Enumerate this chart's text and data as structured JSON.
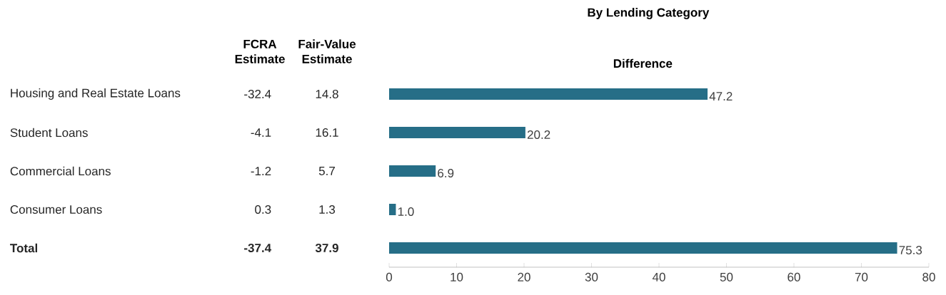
{
  "chart_data": [
    {
      "type": "other",
      "categories": [
        "Housing and Real Estate Loans",
        "Student Loans",
        "Commercial Loans",
        "Consumer Loans",
        "Total"
      ],
      "series": [
        {
          "name": "FCRA Estimate",
          "values": [
            -32.4,
            -4.1,
            -1.2,
            0.3,
            -37.4
          ]
        },
        {
          "name": "Fair-Value Estimate",
          "values": [
            14.8,
            16.1,
            5.7,
            1.3,
            37.9
          ]
        }
      ],
      "data_labels": true
    },
    {
      "type": "bar",
      "orientation": "horizontal",
      "title": "By Lending Category",
      "categories": [
        null,
        null,
        null,
        null,
        null
      ],
      "series": [
        {
          "name": "Difference",
          "color": "#266e87",
          "values": [
            47.2,
            20.2,
            6.9,
            1.0,
            75.3
          ],
          "value_labels": [
            "47.2",
            "20.2",
            "6.9",
            "1.0",
            "75.3"
          ]
        }
      ],
      "xlim": [
        0,
        80
      ],
      "xticks": [
        0,
        10,
        20,
        30,
        40,
        50,
        60,
        70,
        80
      ],
      "data_labels": true,
      "legend": false,
      "grid": false
    }
  ]
}
